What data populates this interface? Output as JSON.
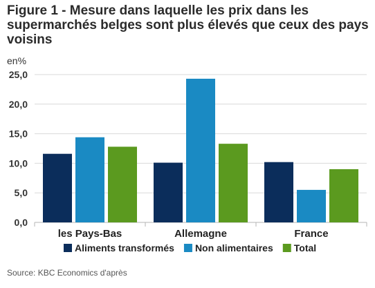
{
  "title": "Figure 1 - Mesure dans laquelle les prix dans les supermarchés belges sont plus élevés que ceux des pays voisins",
  "unit": "en%",
  "source": "Source: KBC Economics d'après",
  "colors": {
    "series": [
      "#0b2d5b",
      "#1a8ac3",
      "#5b9a1f"
    ],
    "grid": "#d9d9d9",
    "axis": "#b5b5b5"
  },
  "chart_data": {
    "type": "bar",
    "categories": [
      "les Pays-Bas",
      "Allemagne",
      "France"
    ],
    "series": [
      {
        "name": "Aliments transformés",
        "values": [
          11.6,
          10.1,
          10.2
        ]
      },
      {
        "name": "Non alimentaires",
        "values": [
          14.4,
          24.3,
          5.5
        ]
      },
      {
        "name": "Total",
        "values": [
          12.8,
          13.3,
          9.0
        ]
      }
    ],
    "ylim": [
      0,
      25
    ],
    "yticks": [
      "0,0",
      "5,0",
      "10,0",
      "15,0",
      "20,0",
      "25,0"
    ],
    "ytick_values": [
      0,
      5,
      10,
      15,
      20,
      25
    ],
    "grid": true,
    "legend": "bottom"
  }
}
